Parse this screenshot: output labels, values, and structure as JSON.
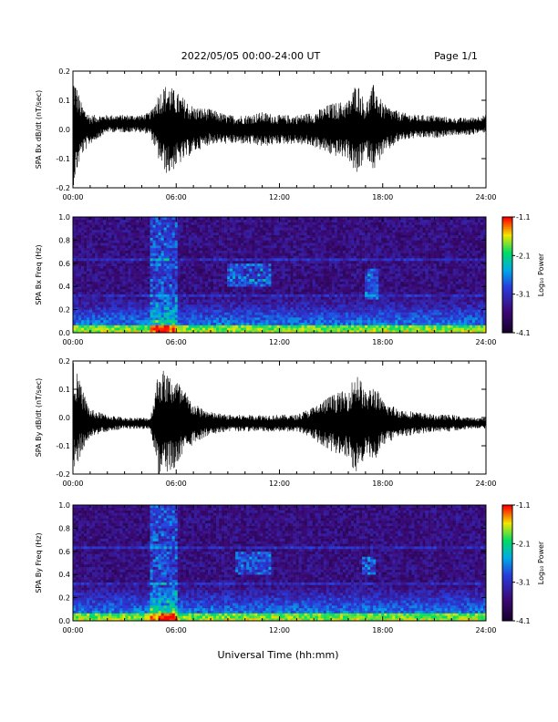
{
  "header": {
    "title": "2022/05/05  00:00-24:00 UT",
    "page": "Page 1/1"
  },
  "footer": {
    "xlabel": "Universal Time (hh:mm)"
  },
  "chart_data": [
    {
      "type": "line",
      "ylabel": "SPA Bx dB/dt (nT/sec)",
      "ylim": [
        -0.2,
        0.2
      ],
      "yticks": [
        "-0.2",
        "-0.1",
        "0.0",
        "0.1",
        "0.2"
      ],
      "xlim": [
        0,
        24
      ],
      "xticks": [
        "00:00",
        "06:00",
        "12:00",
        "18:00",
        "24:00"
      ],
      "series": [
        {
          "x": [
            0,
            0.5,
            1,
            2,
            3,
            4,
            4.5,
            5,
            5.5,
            6,
            7,
            8,
            9,
            10,
            11,
            12,
            13,
            14,
            15,
            16,
            16.5,
            17,
            17.5,
            18,
            19,
            20,
            21,
            22,
            23,
            24
          ],
          "envelope": [
            0.2,
            0.09,
            0.05,
            0.03,
            0.03,
            0.03,
            0.04,
            0.12,
            0.16,
            0.13,
            0.08,
            0.06,
            0.05,
            0.05,
            0.06,
            0.05,
            0.05,
            0.06,
            0.09,
            0.1,
            0.17,
            0.09,
            0.15,
            0.09,
            0.05,
            0.04,
            0.04,
            0.03,
            0.03,
            0.03
          ],
          "baseline": [
            0.0,
            0.0,
            0.0,
            0.02,
            0.02,
            0.02,
            0.02,
            0.01,
            0.0,
            0.0,
            0.0,
            0.01,
            0.0,
            0.0,
            0.0,
            0.0,
            0.0,
            0.0,
            0.0,
            0.0,
            0.0,
            0.0,
            0.01,
            0.0,
            0.01,
            0.01,
            0.01,
            0.01,
            0.01,
            0.02
          ]
        }
      ]
    },
    {
      "type": "heatmap",
      "ylabel": "SPA Bx Freq (Hz)",
      "ylim": [
        0.0,
        1.0
      ],
      "yticks": [
        "0.0",
        "0.2",
        "0.4",
        "0.6",
        "0.8",
        "1.0"
      ],
      "xlim": [
        0,
        24
      ],
      "xticks": [
        "00:00",
        "06:00",
        "12:00",
        "18:00",
        "24:00"
      ],
      "colorbar": {
        "label": "Log₁₀ Power",
        "ticks": [
          "-1.1",
          "-2.1",
          "-3.1",
          "-4.1"
        ],
        "range": [
          -4.1,
          -1.1
        ]
      },
      "features": [
        {
          "time_hours": [
            4.5,
            6.0
          ],
          "freq_hz": [
            0.0,
            1.0
          ],
          "note": "broadband bursts"
        },
        {
          "time_hours": [
            9.0,
            11.5
          ],
          "freq_hz": [
            0.4,
            0.6
          ],
          "note": "emission patches"
        },
        {
          "time_hours": [
            17.0,
            17.8
          ],
          "freq_hz": [
            0.3,
            0.55
          ],
          "note": "emission patch"
        }
      ]
    },
    {
      "type": "line",
      "ylabel": "SPA By dB/dt (nT/sec)",
      "ylim": [
        -0.2,
        0.2
      ],
      "yticks": [
        "-0.2",
        "-0.1",
        "0.0",
        "0.1",
        "0.2"
      ],
      "xlim": [
        0,
        24
      ],
      "xticks": [
        "00:00",
        "06:00",
        "12:00",
        "18:00",
        "24:00"
      ],
      "series": [
        {
          "x": [
            0,
            0.5,
            1,
            2,
            3,
            4,
            4.5,
            5,
            5.5,
            6,
            7,
            8,
            9,
            10,
            11,
            12,
            13,
            14,
            15,
            16,
            16.5,
            17,
            17.5,
            18,
            19,
            20,
            21,
            22,
            23,
            24
          ],
          "envelope": [
            0.2,
            0.12,
            0.05,
            0.03,
            0.02,
            0.02,
            0.02,
            0.2,
            0.18,
            0.16,
            0.07,
            0.04,
            0.03,
            0.03,
            0.03,
            0.03,
            0.03,
            0.06,
            0.1,
            0.12,
            0.19,
            0.11,
            0.14,
            0.08,
            0.05,
            0.04,
            0.03,
            0.03,
            0.02,
            0.02
          ],
          "baseline": [
            0.0,
            -0.01,
            -0.02,
            -0.02,
            -0.02,
            -0.02,
            -0.02,
            -0.02,
            -0.02,
            -0.02,
            -0.02,
            -0.02,
            -0.02,
            -0.02,
            -0.02,
            -0.02,
            -0.02,
            -0.02,
            -0.02,
            -0.02,
            -0.02,
            -0.02,
            -0.02,
            -0.02,
            -0.02,
            -0.02,
            -0.02,
            -0.02,
            -0.02,
            -0.02
          ]
        }
      ]
    },
    {
      "type": "heatmap",
      "ylabel": "SPA By Freq (Hz)",
      "ylim": [
        0.0,
        1.0
      ],
      "yticks": [
        "0.0",
        "0.2",
        "0.4",
        "0.6",
        "0.8",
        "1.0"
      ],
      "xlim": [
        0,
        24
      ],
      "xticks": [
        "00:00",
        "06:00",
        "12:00",
        "18:00",
        "24:00"
      ],
      "colorbar": {
        "label": "Log₁₀ Power",
        "ticks": [
          "-1.1",
          "-2.1",
          "-3.1",
          "-4.1"
        ],
        "range": [
          -4.1,
          -1.1
        ]
      },
      "features": [
        {
          "time_hours": [
            4.5,
            6.0
          ],
          "freq_hz": [
            0.0,
            1.0
          ],
          "note": "broadband bursts"
        },
        {
          "time_hours": [
            9.5,
            11.5
          ],
          "freq_hz": [
            0.4,
            0.6
          ],
          "note": "emission patches"
        },
        {
          "time_hours": [
            16.8,
            17.6
          ],
          "freq_hz": [
            0.4,
            0.55
          ],
          "note": "emission patch"
        }
      ]
    }
  ]
}
